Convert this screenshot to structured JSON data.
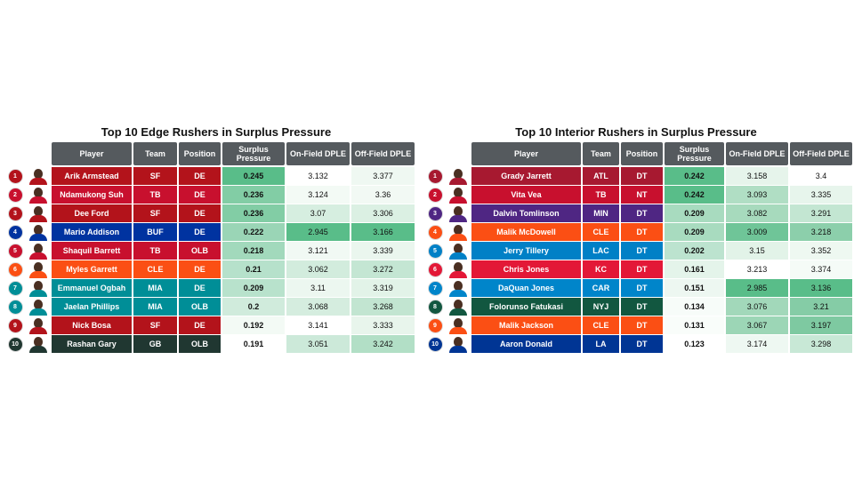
{
  "columns": {
    "player": "Player",
    "team": "Team",
    "position": "Position",
    "surplus": "Surplus Pressure",
    "on_field": "On-Field DPLE",
    "off_field": "Off-Field DPLE"
  },
  "tables": [
    {
      "title": "Top 10 Edge Rushers in Surplus Pressure",
      "rows": [
        {
          "rank": "1",
          "player": "Arik Armstead",
          "team": "SF",
          "position": "DE",
          "surplus": "0.245",
          "on_field": "3.132",
          "off_field": "3.377",
          "team_color": "#b3131b",
          "s_bg": "#59bd89",
          "on_bg": "#ffffff",
          "off_bg": "#eff8f2"
        },
        {
          "rank": "2",
          "player": "Ndamukong Suh",
          "team": "TB",
          "position": "DE",
          "surplus": "0.236",
          "on_field": "3.124",
          "off_field": "3.36",
          "team_color": "#c8102e",
          "s_bg": "#82cda5",
          "on_bg": "#f3faf5",
          "off_bg": "#f2f9f4"
        },
        {
          "rank": "3",
          "player": "Dee Ford",
          "team": "SF",
          "position": "DE",
          "surplus": "0.236",
          "on_field": "3.07",
          "off_field": "3.306",
          "team_color": "#b3131b",
          "s_bg": "#82cda5",
          "on_bg": "#d6eee0",
          "off_bg": "#dbf0e3"
        },
        {
          "rank": "4",
          "player": "Mario Addison",
          "team": "BUF",
          "position": "DE",
          "surplus": "0.222",
          "on_field": "2.945",
          "off_field": "3.166",
          "team_color": "#0033a0",
          "s_bg": "#9ad5b6",
          "on_bg": "#59bd89",
          "off_bg": "#59bd89"
        },
        {
          "rank": "5",
          "player": "Shaquil Barrett",
          "team": "TB",
          "position": "OLB",
          "surplus": "0.218",
          "on_field": "3.121",
          "off_field": "3.339",
          "team_color": "#c8102e",
          "s_bg": "#a2d9bc",
          "on_bg": "#f1f9f4",
          "off_bg": "#eaf6ee"
        },
        {
          "rank": "6",
          "player": "Myles Garrett",
          "team": "CLE",
          "position": "DE",
          "surplus": "0.21",
          "on_field": "3.062",
          "off_field": "3.272",
          "team_color": "#fb4f14",
          "s_bg": "#b6e1cb",
          "on_bg": "#d2ecdd",
          "off_bg": "#c4e6d3"
        },
        {
          "rank": "7",
          "player": "Emmanuel Ogbah",
          "team": "MIA",
          "position": "DE",
          "surplus": "0.209",
          "on_field": "3.11",
          "off_field": "3.319",
          "team_color": "#008e97",
          "s_bg": "#b8e2cc",
          "on_bg": "#ecf7f0",
          "off_bg": "#e2f3e8"
        },
        {
          "rank": "8",
          "player": "Jaelan Phillips",
          "team": "MIA",
          "position": "OLB",
          "surplus": "0.2",
          "on_field": "3.068",
          "off_field": "3.268",
          "team_color": "#008e97",
          "s_bg": "#d0ebdc",
          "on_bg": "#d5eddf",
          "off_bg": "#c2e5d1"
        },
        {
          "rank": "9",
          "player": "Nick Bosa",
          "team": "SF",
          "position": "DE",
          "surplus": "0.192",
          "on_field": "3.141",
          "off_field": "3.333",
          "team_color": "#b3131b",
          "s_bg": "#f3faf5",
          "on_bg": "#ffffff",
          "off_bg": "#e8f5ec"
        },
        {
          "rank": "10",
          "player": "Rashan Gary",
          "team": "GB",
          "position": "OLB",
          "surplus": "0.191",
          "on_field": "3.051",
          "off_field": "3.242",
          "team_color": "#203731",
          "s_bg": "#ffffff",
          "on_bg": "#cce9d9",
          "off_bg": "#b2dfc6"
        }
      ]
    },
    {
      "title": "Top 10 Interior Rushers in Surplus Pressure",
      "rows": [
        {
          "rank": "1",
          "player": "Grady Jarrett",
          "team": "ATL",
          "position": "DT",
          "surplus": "0.242",
          "on_field": "3.158",
          "off_field": "3.4",
          "team_color": "#a71930",
          "s_bg": "#59bd89",
          "on_bg": "#e6f4eb",
          "off_bg": "#ffffff"
        },
        {
          "rank": "2",
          "player": "Vita Vea",
          "team": "TB",
          "position": "NT",
          "surplus": "0.242",
          "on_field": "3.093",
          "off_field": "3.335",
          "team_color": "#c8102e",
          "s_bg": "#59bd89",
          "on_bg": "#b0dec4",
          "off_bg": "#e7f5ec"
        },
        {
          "rank": "3",
          "player": "Dalvin Tomlinson",
          "team": "MIN",
          "position": "DT",
          "surplus": "0.209",
          "on_field": "3.082",
          "off_field": "3.291",
          "team_color": "#4f2683",
          "s_bg": "#a8dbbf",
          "on_bg": "#a7dabd",
          "off_bg": "#c3e6d2"
        },
        {
          "rank": "4",
          "player": "Malik McDowell",
          "team": "CLE",
          "position": "DT",
          "surplus": "0.209",
          "on_field": "3.009",
          "off_field": "3.218",
          "team_color": "#fb4f14",
          "s_bg": "#a8dbbf",
          "on_bg": "#6fc598",
          "off_bg": "#8ccfab"
        },
        {
          "rank": "5",
          "player": "Jerry Tillery",
          "team": "LAC",
          "position": "DT",
          "surplus": "0.202",
          "on_field": "3.15",
          "off_field": "3.352",
          "team_color": "#0080c6",
          "s_bg": "#bce3cf",
          "on_bg": "#e2f3e8",
          "off_bg": "#eef8f1"
        },
        {
          "rank": "6",
          "player": "Chris Jones",
          "team": "KC",
          "position": "DT",
          "surplus": "0.161",
          "on_field": "3.213",
          "off_field": "3.374",
          "team_color": "#e31837",
          "s_bg": "#e4f4ea",
          "on_bg": "#ffffff",
          "off_bg": "#f5fbf7"
        },
        {
          "rank": "7",
          "player": "DaQuan Jones",
          "team": "CAR",
          "position": "DT",
          "surplus": "0.151",
          "on_field": "2.985",
          "off_field": "3.136",
          "team_color": "#0085ca",
          "s_bg": "#edf7f1",
          "on_bg": "#59bd89",
          "off_bg": "#59bd89"
        },
        {
          "rank": "8",
          "player": "Folorunso Fatukasi",
          "team": "NYJ",
          "position": "DT",
          "surplus": "0.134",
          "on_field": "3.076",
          "off_field": "3.21",
          "team_color": "#125740",
          "s_bg": "#f7fcf9",
          "on_bg": "#a2d8ba",
          "off_bg": "#85cca6"
        },
        {
          "rank": "9",
          "player": "Malik Jackson",
          "team": "CLE",
          "position": "DT",
          "surplus": "0.131",
          "on_field": "3.067",
          "off_field": "3.197",
          "team_color": "#fb4f14",
          "s_bg": "#f9fdfa",
          "on_bg": "#9cd6b6",
          "off_bg": "#7ec9a1"
        },
        {
          "rank": "10",
          "player": "Aaron Donald",
          "team": "LA",
          "position": "DT",
          "surplus": "0.123",
          "on_field": "3.174",
          "off_field": "3.298",
          "team_color": "#003594",
          "s_bg": "#ffffff",
          "on_bg": "#eef8f2",
          "off_bg": "#c8e8d6"
        }
      ]
    }
  ]
}
